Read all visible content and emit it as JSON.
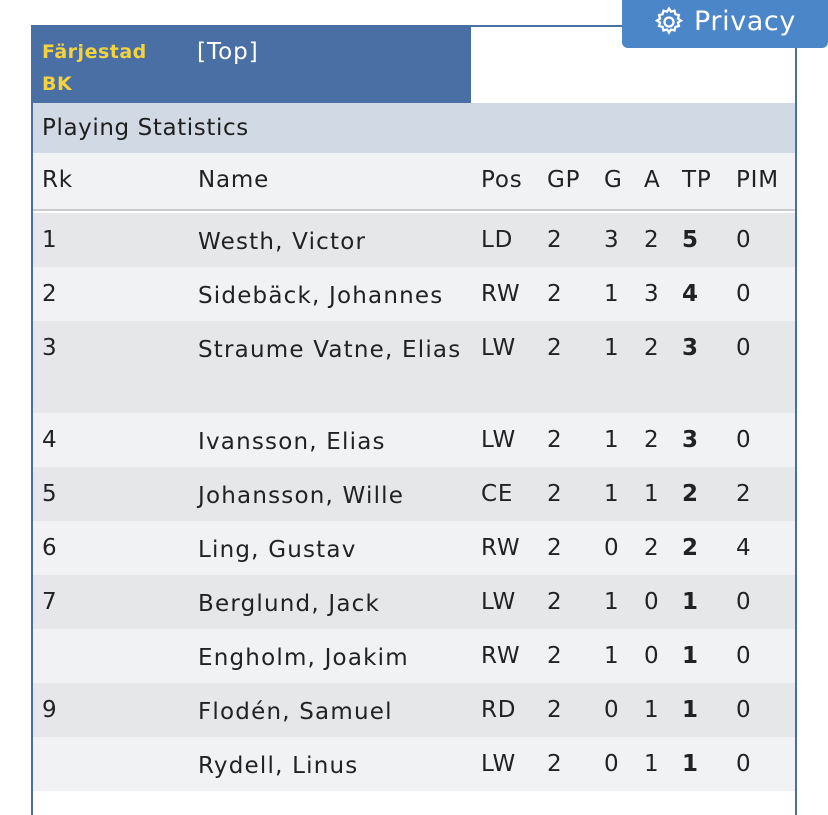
{
  "team": {
    "name": "Färjestad BK",
    "top_link": "[Top]"
  },
  "privacy": {
    "label": "Privacy",
    "icon": "gear-icon"
  },
  "section": {
    "title": "Playing Statistics"
  },
  "columns": {
    "rk": "Rk",
    "name": "Name",
    "pos": "Pos",
    "gp": "GP",
    "g": "G",
    "a": "A",
    "tp": "TP",
    "pim": "PIM"
  },
  "rows": [
    {
      "rk": "1",
      "name": "Westh, Victor",
      "pos": "LD",
      "gp": "2",
      "g": "3",
      "a": "2",
      "tp": "5",
      "pim": "0"
    },
    {
      "rk": "2",
      "name": "Sidebäck, Johannes",
      "pos": "RW",
      "gp": "2",
      "g": "1",
      "a": "3",
      "tp": "4",
      "pim": "0"
    },
    {
      "rk": "3",
      "name": "Straume Vatne, Elias",
      "pos": "LW",
      "gp": "2",
      "g": "1",
      "a": "2",
      "tp": "3",
      "pim": "0"
    },
    {
      "rk": "4",
      "name": "Ivansson, Elias",
      "pos": "LW",
      "gp": "2",
      "g": "1",
      "a": "2",
      "tp": "3",
      "pim": "0"
    },
    {
      "rk": "5",
      "name": "Johansson, Wille",
      "pos": "CE",
      "gp": "2",
      "g": "1",
      "a": "1",
      "tp": "2",
      "pim": "2"
    },
    {
      "rk": "6",
      "name": "Ling, Gustav",
      "pos": "RW",
      "gp": "2",
      "g": "0",
      "a": "2",
      "tp": "2",
      "pim": "4"
    },
    {
      "rk": "7",
      "name": "Berglund, Jack",
      "pos": "LW",
      "gp": "2",
      "g": "1",
      "a": "0",
      "tp": "1",
      "pim": "0"
    },
    {
      "rk": "",
      "name": "Engholm, Joakim",
      "pos": "RW",
      "gp": "2",
      "g": "1",
      "a": "0",
      "tp": "1",
      "pim": "0"
    },
    {
      "rk": "9",
      "name": "Flodén, Samuel",
      "pos": "RD",
      "gp": "2",
      "g": "0",
      "a": "1",
      "tp": "1",
      "pim": "0"
    },
    {
      "rk": "",
      "name": "Rydell, Linus",
      "pos": "LW",
      "gp": "2",
      "g": "0",
      "a": "1",
      "tp": "1",
      "pim": "0"
    }
  ],
  "colors": {
    "header_blue": "#4a6fa5",
    "team_gold": "#f5d33d",
    "section_bg": "#d0d9e4",
    "privacy_bg": "#4a86c8"
  }
}
